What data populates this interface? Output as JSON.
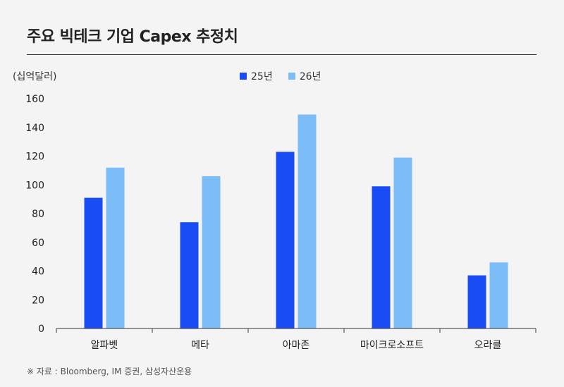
{
  "title": "주요 빅테크 기업 Capex 추정치",
  "unit_label": "(십억달러)",
  "source": "※ 자료 : Bloomberg, IM 증권, 삼성자산운용",
  "colors": {
    "series_25": "#1a4cf5",
    "series_26": "#7dbdf7",
    "axis": "#333333"
  },
  "chart_data": {
    "type": "bar",
    "title": "주요 빅테크 기업 Capex 추정치",
    "ylabel": "(십억달러)",
    "xlabel": "",
    "categories": [
      "알파벳",
      "메타",
      "아마존",
      "마이크로소프트",
      "오라클"
    ],
    "series": [
      {
        "name": "25년",
        "values": [
          91,
          74,
          123,
          99,
          37
        ]
      },
      {
        "name": "26년",
        "values": [
          112,
          106,
          149,
          119,
          46
        ]
      }
    ],
    "ylim": [
      0,
      160
    ],
    "yticks": [
      "0",
      "20",
      "40",
      "60",
      "80",
      "100",
      "120",
      "140",
      "160"
    ],
    "grid": false,
    "legend": "top-center"
  }
}
